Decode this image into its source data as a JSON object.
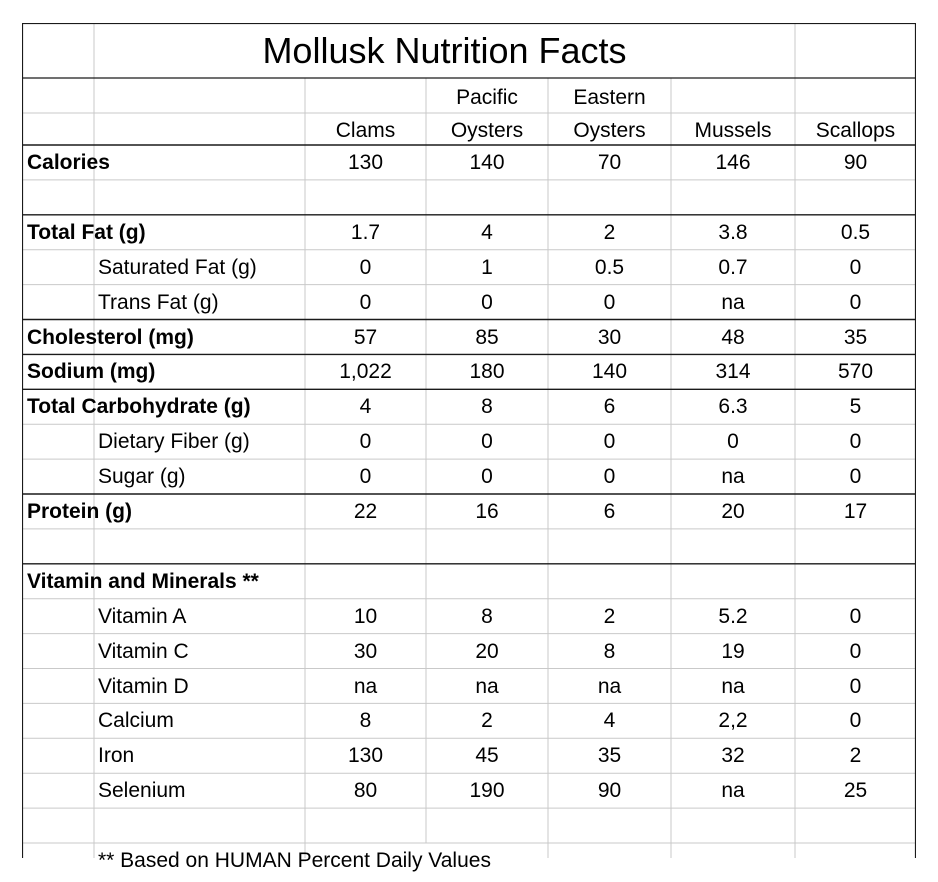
{
  "title": "Mollusk Nutrition Facts",
  "columns": [
    {
      "line1": "",
      "line2": "Clams"
    },
    {
      "line1": "Pacific",
      "line2": "Oysters"
    },
    {
      "line1": "Eastern",
      "line2": "Oysters"
    },
    {
      "line1": "",
      "line2": "Mussels"
    },
    {
      "line1": "",
      "line2": "Scallops"
    }
  ],
  "rows": [
    {
      "label": "Calories",
      "bold": true,
      "indent": false,
      "values": [
        "130",
        "140",
        "70",
        "146",
        "90"
      ]
    },
    {
      "label": "",
      "bold": false,
      "indent": false,
      "values": [
        "",
        "",
        "",
        "",
        ""
      ]
    },
    {
      "label": "Total Fat (g)",
      "bold": true,
      "indent": false,
      "values": [
        "1.7",
        "4",
        "2",
        "3.8",
        "0.5"
      ]
    },
    {
      "label": "Saturated Fat (g)",
      "bold": false,
      "indent": true,
      "values": [
        "0",
        "1",
        "0.5",
        "0.7",
        "0"
      ]
    },
    {
      "label": "Trans Fat (g)",
      "bold": false,
      "indent": true,
      "values": [
        "0",
        "0",
        "0",
        "na",
        "0"
      ]
    },
    {
      "label": "Cholesterol (mg)",
      "bold": true,
      "indent": false,
      "values": [
        "57",
        "85",
        "30",
        "48",
        "35"
      ]
    },
    {
      "label": "Sodium (mg)",
      "bold": true,
      "indent": false,
      "values": [
        "1,022",
        "180",
        "140",
        "314",
        "570"
      ]
    },
    {
      "label": "Total Carbohydrate (g)",
      "bold": true,
      "indent": false,
      "values": [
        "4",
        "8",
        "6",
        "6.3",
        "5"
      ]
    },
    {
      "label": "Dietary Fiber (g)",
      "bold": false,
      "indent": true,
      "values": [
        "0",
        "0",
        "0",
        "0",
        "0"
      ]
    },
    {
      "label": "Sugar (g)",
      "bold": false,
      "indent": true,
      "values": [
        "0",
        "0",
        "0",
        "na",
        "0"
      ]
    },
    {
      "label": "Protein (g)",
      "bold": true,
      "indent": false,
      "values": [
        "22",
        "16",
        "6",
        "20",
        "17"
      ]
    },
    {
      "label": "",
      "bold": false,
      "indent": false,
      "values": [
        "",
        "",
        "",
        "",
        ""
      ]
    },
    {
      "label": "Vitamin and Minerals **",
      "bold": true,
      "indent": false,
      "values": [
        "",
        "",
        "",
        "",
        ""
      ]
    },
    {
      "label": "Vitamin A",
      "bold": false,
      "indent": true,
      "values": [
        "10",
        "8",
        "2",
        "5.2",
        "0"
      ]
    },
    {
      "label": "Vitamin C",
      "bold": false,
      "indent": true,
      "values": [
        "30",
        "20",
        "8",
        "19",
        "0"
      ]
    },
    {
      "label": "Vitamin D",
      "bold": false,
      "indent": true,
      "values": [
        "na",
        "na",
        "na",
        "na",
        "0"
      ]
    },
    {
      "label": "Calcium",
      "bold": false,
      "indent": true,
      "values": [
        "8",
        "2",
        "4",
        "2,2",
        "0"
      ]
    },
    {
      "label": "Iron",
      "bold": false,
      "indent": true,
      "values": [
        "130",
        "45",
        "35",
        "32",
        "2"
      ]
    },
    {
      "label": "Selenium",
      "bold": false,
      "indent": true,
      "values": [
        "80",
        "190",
        "90",
        "na",
        "25"
      ]
    },
    {
      "label": "",
      "bold": false,
      "indent": false,
      "values": [
        "",
        "",
        "",
        "",
        ""
      ]
    }
  ],
  "footnote": "** Based on HUMAN Percent Daily Values"
}
